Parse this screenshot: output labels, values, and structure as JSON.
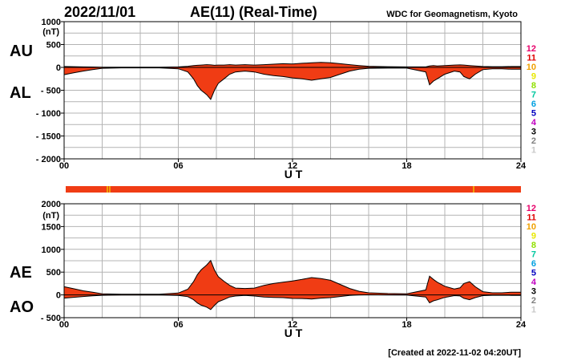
{
  "header": {
    "date": "2022/11/01",
    "title": "AE(11) (Real-Time)",
    "source": "WDC for Geomagnetism, Kyoto"
  },
  "footer": {
    "created": "[Created at 2022-11-02 04:20UT]"
  },
  "legend": {
    "counts": [
      "12",
      "11",
      "10",
      "9",
      "8",
      "7",
      "6",
      "5",
      "4",
      "3",
      "2",
      "1"
    ],
    "colors": [
      "#e8006a",
      "#e00000",
      "#f0a000",
      "#e8e800",
      "#90e000",
      "#00c8a0",
      "#00a0e0",
      "#0000c0",
      "#c000c0",
      "#000000",
      "#808080",
      "#c8c8c8"
    ]
  },
  "colors": {
    "fill": "#f03c14",
    "outline": "#000000",
    "grid": "#b4b4b4",
    "station_bar": "#f03c14",
    "station_bar_marks": "#f0a000"
  },
  "chart_data": [
    {
      "type": "area",
      "panel": "AU/AL",
      "labels": [
        "AU",
        "AL"
      ],
      "unit": "(nT)",
      "ylim": [
        -2000,
        1000
      ],
      "yticks": [
        1000,
        500,
        0,
        -500,
        -1000,
        -1500,
        -2000
      ],
      "ytick_labels": [
        "1000",
        "500",
        "0",
        "- 500",
        "- 1000",
        "- 1500",
        "- 2000"
      ],
      "xlim": [
        0,
        24
      ],
      "xticks": [
        0,
        6,
        12,
        18,
        24
      ],
      "xtick_labels": [
        "00",
        "06",
        "12",
        "18",
        "24"
      ],
      "xlabel": "U T",
      "grid": true,
      "series": [
        {
          "x": [
            0,
            0.5,
            1,
            1.5,
            2,
            3,
            4,
            5,
            6,
            6.5,
            6.8,
            7,
            7.2,
            7.5,
            7.7,
            7.9,
            8.1,
            8.4,
            8.7,
            9,
            9.5,
            10,
            10.5,
            11,
            11.5,
            12,
            12.5,
            13,
            13.5,
            14,
            14.5,
            15,
            15.5,
            16,
            17,
            18,
            19,
            19.2,
            19.4,
            19.6,
            20,
            20.5,
            20.8,
            21,
            21.3,
            21.6,
            22,
            22.5,
            23,
            23.5,
            24
          ],
          "values": [
            20,
            15,
            10,
            8,
            5,
            5,
            5,
            5,
            10,
            25,
            40,
            45,
            50,
            60,
            55,
            45,
            50,
            50,
            60,
            50,
            60,
            50,
            60,
            70,
            80,
            75,
            90,
            100,
            110,
            100,
            80,
            60,
            40,
            25,
            15,
            10,
            10,
            30,
            40,
            30,
            40,
            50,
            55,
            50,
            40,
            30,
            20,
            15,
            15,
            20,
            20
          ]
        },
        {
          "x": [
            0,
            0.5,
            1,
            1.5,
            2,
            3,
            4,
            5,
            6,
            6.5,
            6.8,
            7,
            7.2,
            7.5,
            7.7,
            7.9,
            8.1,
            8.4,
            8.7,
            9,
            9.5,
            10,
            10.5,
            11,
            11.5,
            12,
            12.5,
            13,
            13.5,
            14,
            14.5,
            15,
            15.5,
            16,
            17,
            18,
            19,
            19.2,
            19.4,
            19.6,
            20,
            20.5,
            20.8,
            21,
            21.3,
            21.6,
            22,
            22.5,
            23,
            23.5,
            24
          ],
          "values": [
            -160,
            -120,
            -80,
            -50,
            -20,
            -10,
            -10,
            -10,
            -30,
            -100,
            -250,
            -400,
            -500,
            -600,
            -700,
            -500,
            -350,
            -250,
            -150,
            -100,
            -80,
            -100,
            -150,
            -180,
            -200,
            -230,
            -250,
            -280,
            -250,
            -220,
            -150,
            -80,
            -40,
            -20,
            -15,
            -15,
            -100,
            -380,
            -300,
            -250,
            -150,
            -80,
            -100,
            -200,
            -250,
            -150,
            -50,
            -30,
            -30,
            -40,
            -40
          ]
        }
      ]
    },
    {
      "type": "area",
      "panel": "AE/AO",
      "labels": [
        "AE",
        "AO"
      ],
      "unit": "(nT)",
      "ylim": [
        -500,
        2000
      ],
      "yticks": [
        2000,
        1500,
        1000,
        500,
        0,
        -500
      ],
      "ytick_labels": [
        "2000",
        "1500",
        "1000",
        "500",
        "0",
        "- 500"
      ],
      "xlim": [
        0,
        24
      ],
      "xticks": [
        0,
        6,
        12,
        18,
        24
      ],
      "xtick_labels": [
        "00",
        "06",
        "12",
        "18",
        "24"
      ],
      "xlabel": "U T",
      "grid": true,
      "series": [
        {
          "x": [
            0,
            0.5,
            1,
            1.5,
            2,
            3,
            4,
            5,
            6,
            6.5,
            6.8,
            7,
            7.2,
            7.5,
            7.7,
            7.9,
            8.1,
            8.4,
            8.7,
            9,
            9.5,
            10,
            10.5,
            11,
            11.5,
            12,
            12.5,
            13,
            13.5,
            14,
            14.5,
            15,
            15.5,
            16,
            17,
            18,
            19,
            19.2,
            19.4,
            19.6,
            20,
            20.5,
            20.8,
            21,
            21.3,
            21.6,
            22,
            22.5,
            23,
            23.5,
            24
          ],
          "values": [
            180,
            135,
            90,
            58,
            25,
            15,
            15,
            15,
            40,
            125,
            290,
            445,
            550,
            660,
            755,
            545,
            400,
            300,
            210,
            150,
            140,
            150,
            210,
            250,
            280,
            305,
            340,
            380,
            360,
            320,
            230,
            140,
            80,
            45,
            30,
            25,
            110,
            410,
            340,
            280,
            190,
            130,
            155,
            250,
            290,
            180,
            70,
            45,
            45,
            60,
            60
          ]
        },
        {
          "x": [
            0,
            0.5,
            1,
            1.5,
            2,
            3,
            4,
            5,
            6,
            6.5,
            6.8,
            7,
            7.2,
            7.5,
            7.7,
            7.9,
            8.1,
            8.4,
            8.7,
            9,
            9.5,
            10,
            10.5,
            11,
            11.5,
            12,
            12.5,
            13,
            13.5,
            14,
            14.5,
            15,
            15.5,
            16,
            17,
            18,
            19,
            19.2,
            19.4,
            19.6,
            20,
            20.5,
            20.8,
            21,
            21.3,
            21.6,
            22,
            22.5,
            23,
            23.5,
            24
          ],
          "values": [
            -70,
            -52,
            -35,
            -21,
            -8,
            -3,
            -3,
            -3,
            -10,
            -38,
            -105,
            -178,
            -225,
            -270,
            -323,
            -228,
            -150,
            -100,
            -45,
            -25,
            -10,
            -25,
            -45,
            -55,
            -60,
            -78,
            -80,
            -90,
            -70,
            -60,
            -35,
            -10,
            0,
            3,
            0,
            -3,
            -45,
            -175,
            -130,
            -110,
            -55,
            -15,
            -23,
            -75,
            -105,
            -60,
            -15,
            -8,
            -8,
            -10,
            -10
          ]
        }
      ]
    }
  ]
}
